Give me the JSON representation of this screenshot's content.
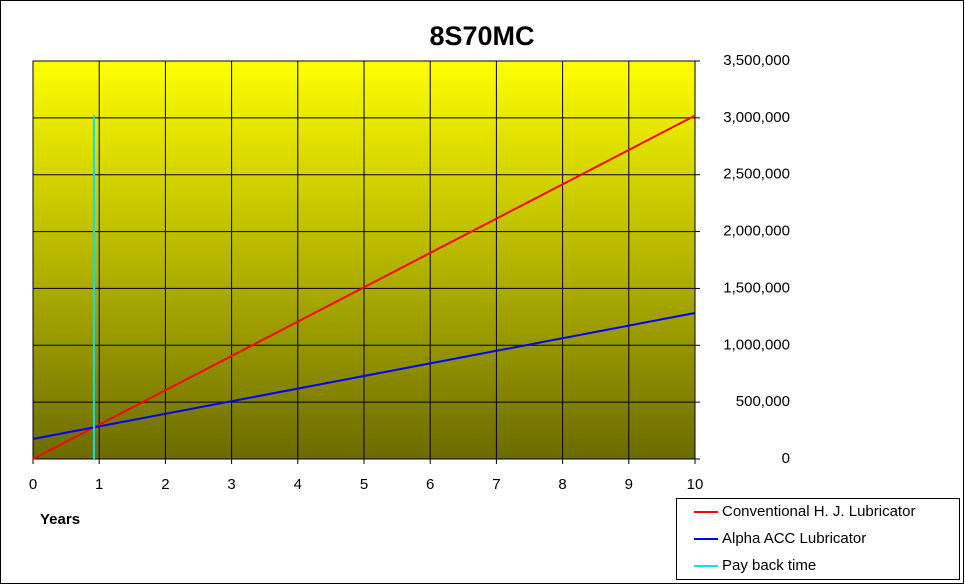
{
  "chart_data": {
    "type": "line",
    "title": "8S70MC",
    "x_label": "Years",
    "xlim": [
      0,
      10
    ],
    "xticks": [
      0,
      1,
      2,
      3,
      4,
      5,
      6,
      7,
      8,
      9,
      10
    ],
    "ylim": [
      0,
      3500000
    ],
    "yticks": [
      0,
      {
        "value": 500000,
        "label": "500,000"
      },
      {
        "value": 1000000,
        "label": "1,000,000"
      },
      {
        "value": 1500000,
        "label": "1,500,000"
      },
      {
        "value": 2000000,
        "label": "2,000,000"
      },
      {
        "value": 2500000,
        "label": "2,500,000"
      },
      {
        "value": 3000000,
        "label": "3,000,000"
      },
      {
        "value": 3500000,
        "label": "3,500,000"
      }
    ],
    "y_axis_side": "right",
    "grid": true,
    "legend": "bottom-right",
    "series": [
      {
        "name": "Conventional  H. J. Lubricator",
        "color": "#ff0000",
        "x": [
          0,
          10
        ],
        "values": [
          0,
          3020000
        ]
      },
      {
        "name": "Alpha ACC Lubricator",
        "color": "#0000ff",
        "x": [
          0,
          10
        ],
        "values": [
          176000,
          1284000
        ]
      },
      {
        "name": "Pay back time",
        "color": "#00e5e5",
        "x": [
          0.92,
          0.92
        ],
        "values": [
          0,
          3025000
        ]
      }
    ]
  }
}
